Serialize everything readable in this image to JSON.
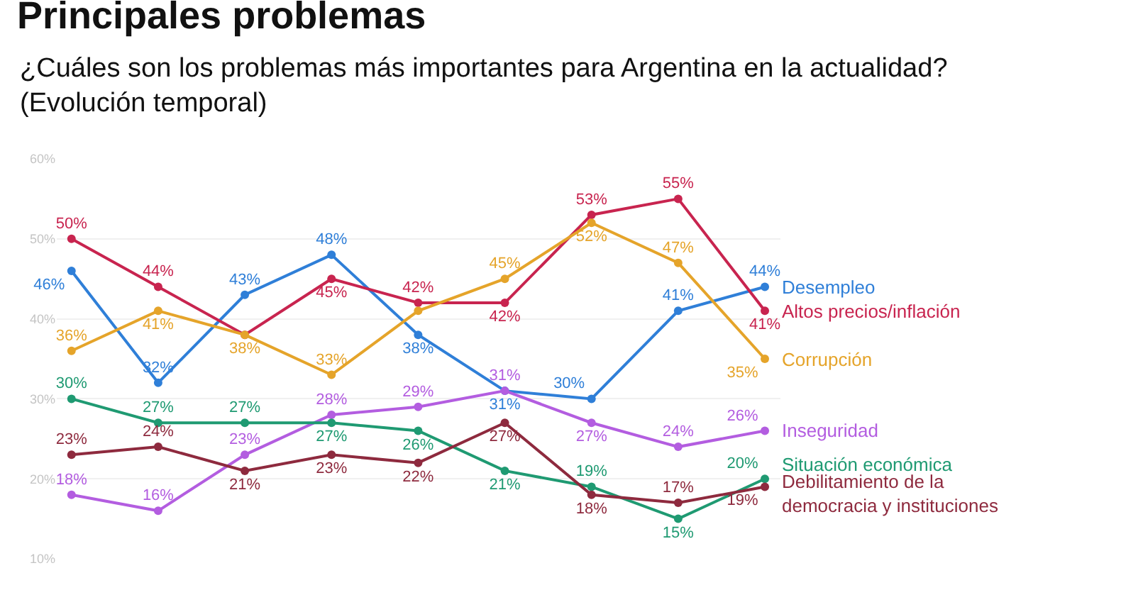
{
  "chart_data": {
    "type": "line",
    "title": "Principales problemas",
    "subtitle": "¿Cuáles son los problemas más importantes para Argentina en la actualidad?\n(Evolución temporal)",
    "categories": [
      null,
      null,
      null,
      null,
      null,
      null,
      null,
      null,
      null
    ],
    "ylim": [
      10,
      60
    ],
    "yticks": [
      {
        "value": 10,
        "label": "10%"
      },
      {
        "value": 20,
        "label": "20%"
      },
      {
        "value": 30,
        "label": "30%"
      },
      {
        "value": 40,
        "label": "40%"
      },
      {
        "value": 50,
        "label": "50%"
      },
      {
        "value": 60,
        "label": "60%"
      }
    ],
    "grid": "y",
    "legend": false,
    "tick_labels": "y",
    "marker": "circle",
    "line_style": "solid",
    "series": [
      {
        "name": "Desempleo",
        "color": "#2f7fd8",
        "values": [
          46,
          32,
          43,
          48,
          38,
          31,
          30,
          41,
          44
        ],
        "value_labels": [
          "46%",
          "32%",
          "43%",
          "48%",
          "38%",
          "31%",
          "30%",
          "41%",
          "44%"
        ]
      },
      {
        "name": "Altos precios/inflación",
        "color": "#c8244f",
        "values": [
          50,
          44,
          38,
          45,
          42,
          42,
          53,
          55,
          41
        ],
        "value_labels": [
          "50%",
          "44%",
          null,
          "45%",
          "42%",
          "42%",
          "53%",
          "55%",
          "41%"
        ]
      },
      {
        "name": "Corrupción",
        "color": "#e5a42a",
        "values": [
          36,
          41,
          38,
          33,
          41,
          45,
          52,
          47,
          35
        ],
        "value_labels": [
          "36%",
          "41%",
          "38%",
          "33%",
          null,
          "45%",
          "52%",
          "47%",
          "35%"
        ]
      },
      {
        "name": "Inseguridad",
        "color": "#b35de0",
        "values": [
          18,
          16,
          23,
          28,
          29,
          31,
          27,
          24,
          26
        ],
        "value_labels": [
          "18%",
          "16%",
          "23%",
          "28%",
          "29%",
          "31%",
          "27%",
          "24%",
          "26%"
        ]
      },
      {
        "name": "Situación económica",
        "color": "#1f9a72",
        "values": [
          30,
          27,
          27,
          27,
          26,
          21,
          19,
          15,
          20
        ],
        "value_labels": [
          "30%",
          "27%",
          "27%",
          "27%",
          "26%",
          "21%",
          "19%",
          "15%",
          "20%"
        ]
      },
      {
        "name": "Debilitamiento de la democracia y instituciones",
        "color": "#8e2a3e",
        "values": [
          23,
          24,
          21,
          23,
          22,
          27,
          18,
          17,
          19
        ],
        "value_labels": [
          "23%",
          "24%",
          "21%",
          "23%",
          "22%",
          "27%",
          "18%",
          "17%",
          "19%"
        ]
      }
    ]
  }
}
